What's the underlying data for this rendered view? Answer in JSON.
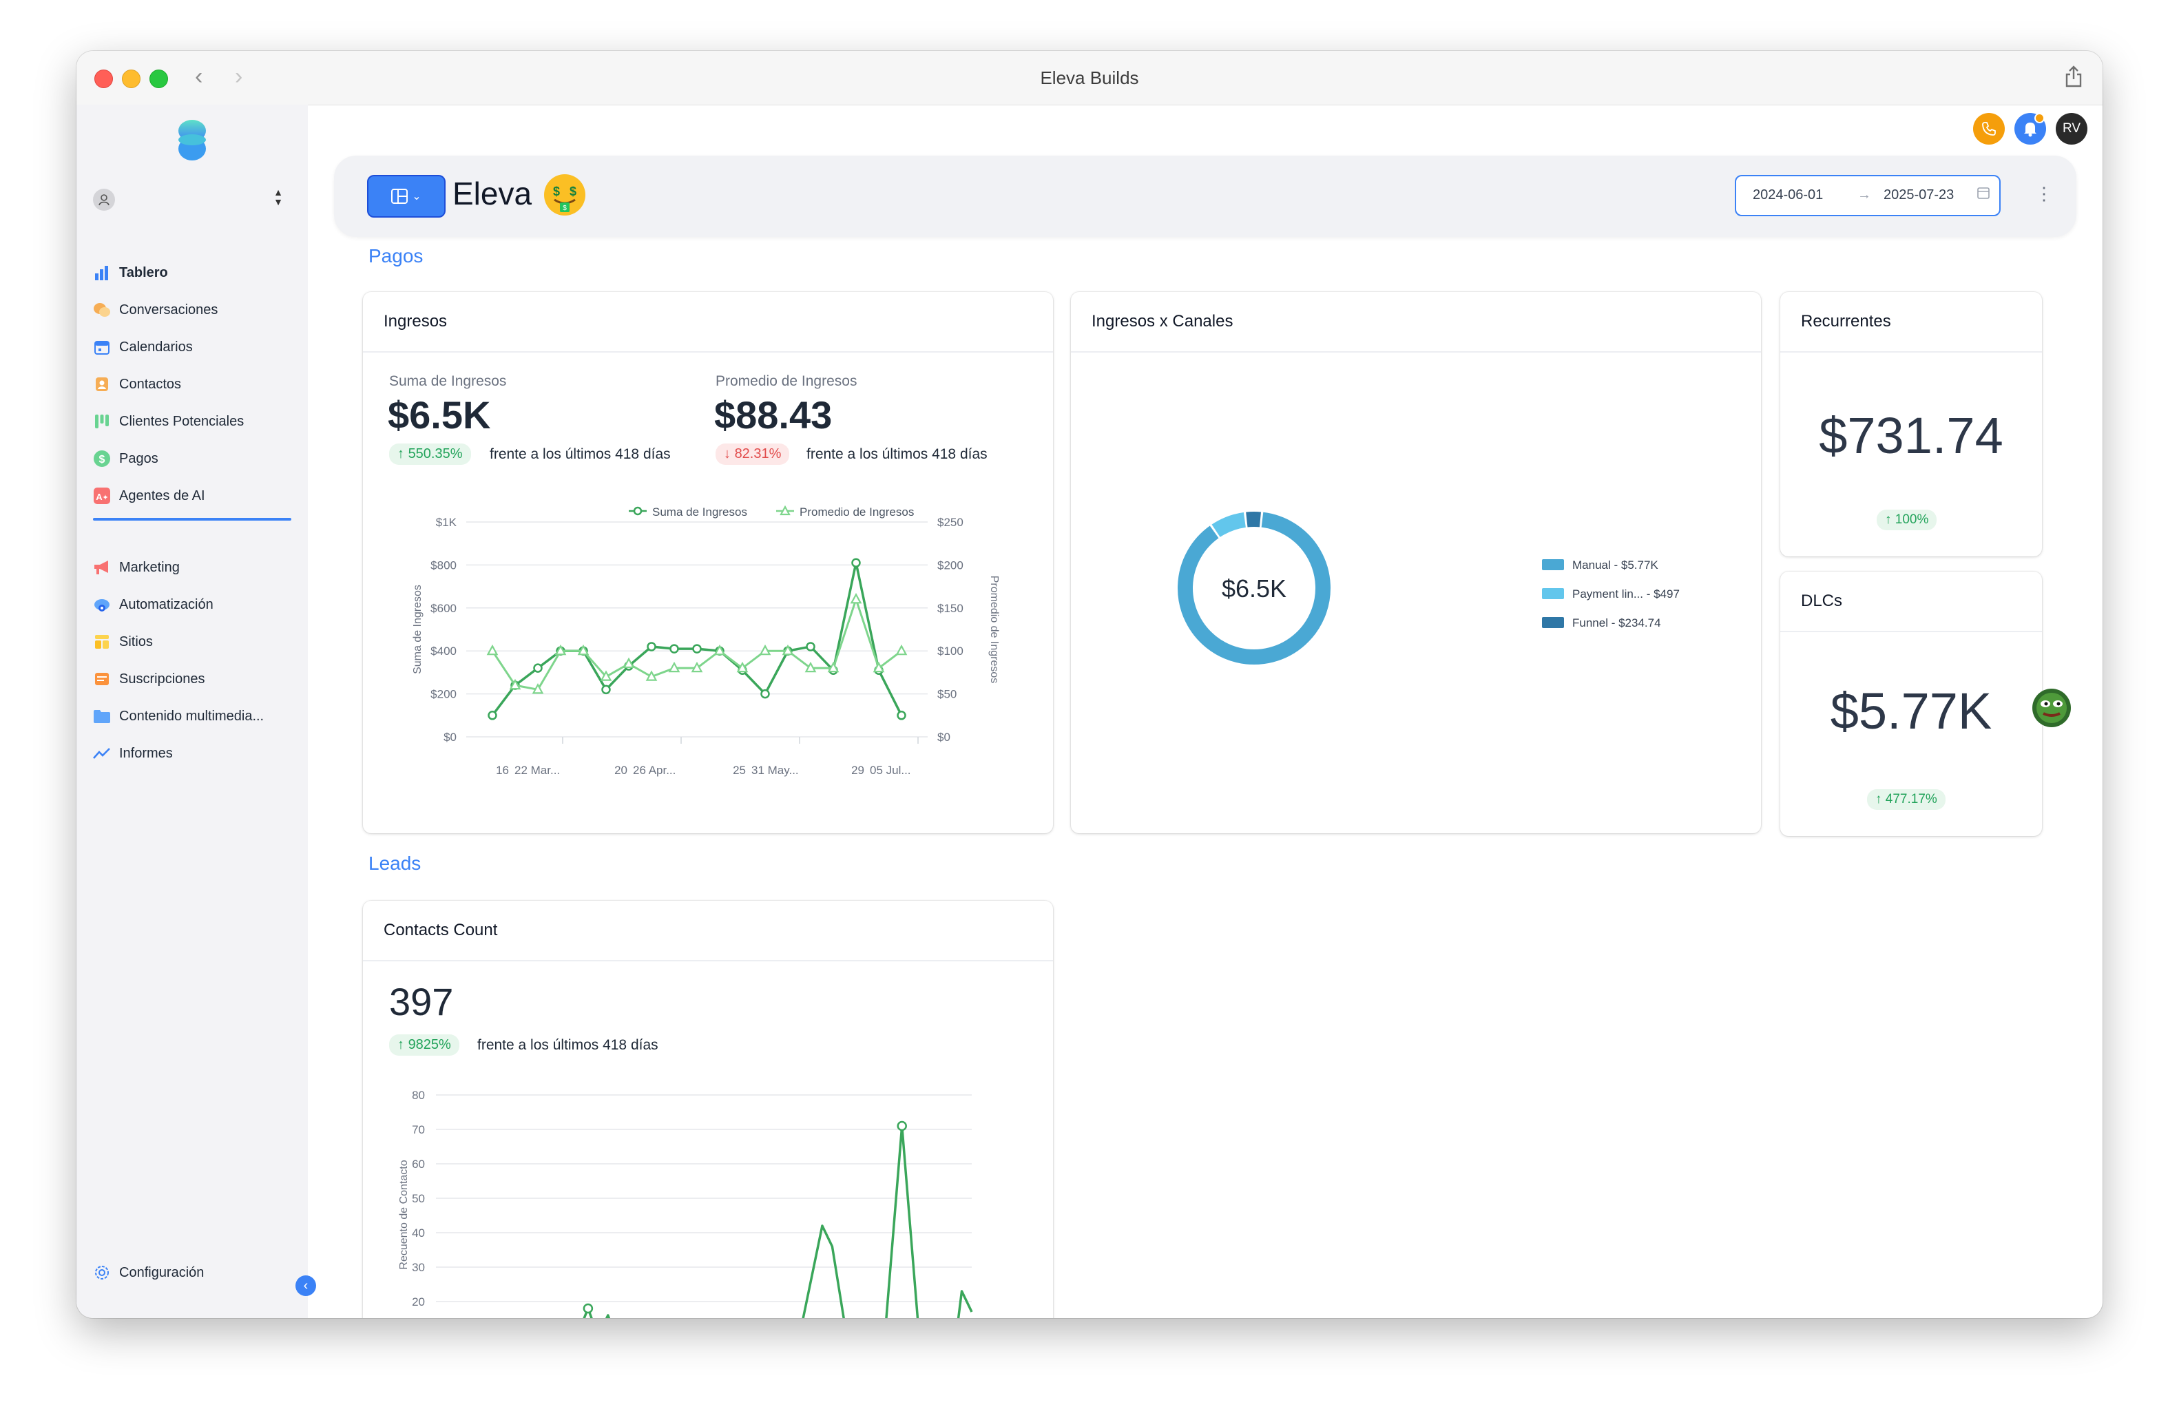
{
  "window": {
    "title": "Eleva Builds"
  },
  "sidebar": {
    "items": [
      {
        "label": "Tablero",
        "icon": "bar-chart-icon",
        "color": "#3b82f6"
      },
      {
        "label": "Conversaciones",
        "icon": "chat-bubbles-icon",
        "color": "#f59e0b"
      },
      {
        "label": "Calendarios",
        "icon": "calendar-icon",
        "color": "#3b82f6"
      },
      {
        "label": "Contactos",
        "icon": "contact-card-icon",
        "color": "#f97316"
      },
      {
        "label": "Clientes Potenciales",
        "icon": "pipeline-icon",
        "color": "#22c55e"
      },
      {
        "label": "Pagos",
        "icon": "dollar-icon",
        "color": "#22c55e"
      },
      {
        "label": "Agentes de AI",
        "icon": "ai-agent-icon",
        "color": "#ef4444"
      },
      {
        "label": "Marketing",
        "icon": "megaphone-icon",
        "color": "#ef4444"
      },
      {
        "label": "Automatización",
        "icon": "automation-cloud-icon",
        "color": "#3b82f6"
      },
      {
        "label": "Sitios",
        "icon": "sites-icon",
        "color": "#fbbf24"
      },
      {
        "label": "Suscripciones",
        "icon": "subscriptions-icon",
        "color": "#f97316"
      },
      {
        "label": "Contenido multimedia...",
        "icon": "folder-icon",
        "color": "#3b82f6"
      },
      {
        "label": "Informes",
        "icon": "trend-icon",
        "color": "#3b82f6"
      }
    ],
    "settings_label": "Configuración"
  },
  "topbar": {
    "avatar_initials": "RV"
  },
  "header": {
    "title": "Eleva",
    "date_start": "2024-06-01",
    "date_end": "2025-07-23"
  },
  "sections": {
    "payments": "Pagos",
    "leads": "Leads"
  },
  "ingresos": {
    "card_title": "Ingresos",
    "sum_label": "Suma de Ingresos",
    "sum_value": "$6.5K",
    "sum_change": "550.35%",
    "avg_label": "Promedio de Ingresos",
    "avg_value": "$88.43",
    "avg_change": "82.31%",
    "comparison": "frente a los últimos 418 días"
  },
  "channels": {
    "card_title": "Ingresos x Canales",
    "center_label": "$6.5K"
  },
  "recurrentes": {
    "card_title": "Recurrentes",
    "value": "$731.74",
    "change": "100%"
  },
  "dlcs": {
    "card_title": "DLCs",
    "value": "$5.77K",
    "change": "477.17%"
  },
  "contacts": {
    "card_title": "Contacts Count",
    "value": "397",
    "change": "9825%",
    "comparison": "frente a los últimos 418 días"
  },
  "chart_data": [
    {
      "type": "line",
      "title": "",
      "legend": [
        "Suma de Ingresos",
        "Promedio de Ingresos"
      ],
      "legend_position": "top",
      "xlabel": "",
      "ylabel": "Suma de Ingresos",
      "y2label": "Promedio de Ingresos",
      "ylim": [
        0,
        1000
      ],
      "y2lim": [
        0,
        250
      ],
      "y_ticks": [
        "$0",
        "$200",
        "$400",
        "$600",
        "$800",
        "$1K"
      ],
      "y2_ticks": [
        "$0",
        "$50",
        "$100",
        "$150",
        "$200",
        "$250"
      ],
      "x_tick_labels": [
        {
          "day": "16",
          "month": "22 Mar..."
        },
        {
          "day": "20",
          "month": "26 Apr..."
        },
        {
          "day": "25",
          "month": "31 May..."
        },
        {
          "day": "29",
          "month": "05 Jul..."
        }
      ],
      "series": [
        {
          "name": "Suma de Ingresos",
          "marker": "circle",
          "color": "#3aa65a",
          "values": [
            100,
            240,
            320,
            400,
            400,
            220,
            330,
            420,
            410,
            410,
            400,
            310,
            200,
            400,
            420,
            310,
            810,
            310,
            100
          ]
        },
        {
          "name": "Promedio de Ingresos",
          "marker": "triangle",
          "color": "#7ed58c",
          "values": [
            100,
            60,
            55,
            100,
            100,
            70,
            85,
            70,
            80,
            80,
            100,
            80,
            100,
            100,
            80,
            80,
            160,
            80,
            100
          ]
        }
      ]
    },
    {
      "type": "pie",
      "title": "",
      "slices": [
        {
          "label": "Manual - $5.77K",
          "value": 5770,
          "color": "#4aa8d4"
        },
        {
          "label": "Payment lin... - $497",
          "value": 497,
          "color": "#62c6ec"
        },
        {
          "label": "Funnel - $234.74",
          "value": 234.74,
          "color": "#2f77a6"
        }
      ],
      "legend_position": "right"
    },
    {
      "type": "line",
      "title": "",
      "ylabel": "Recuento de Contacto",
      "ylim": [
        0,
        80
      ],
      "y_ticks": [
        "20",
        "30",
        "40",
        "50",
        "60",
        "70",
        "80"
      ],
      "series": [
        {
          "name": "",
          "color": "#3aa65a",
          "points": [
            [
              0,
              0
            ],
            [
              20,
              0
            ],
            [
              25,
              18
            ],
            [
              27,
              10
            ],
            [
              29,
              16
            ],
            [
              31,
              8
            ],
            [
              40,
              0
            ],
            [
              58,
              0
            ],
            [
              60,
              14
            ],
            [
              62,
              2
            ],
            [
              66,
              0
            ],
            [
              72,
              42
            ],
            [
              74,
              36
            ],
            [
              78,
              0
            ],
            [
              84,
              0
            ],
            [
              88,
              71
            ],
            [
              92,
              0
            ],
            [
              98,
              0
            ],
            [
              100,
              23
            ],
            [
              102,
              17
            ]
          ]
        }
      ]
    }
  ]
}
